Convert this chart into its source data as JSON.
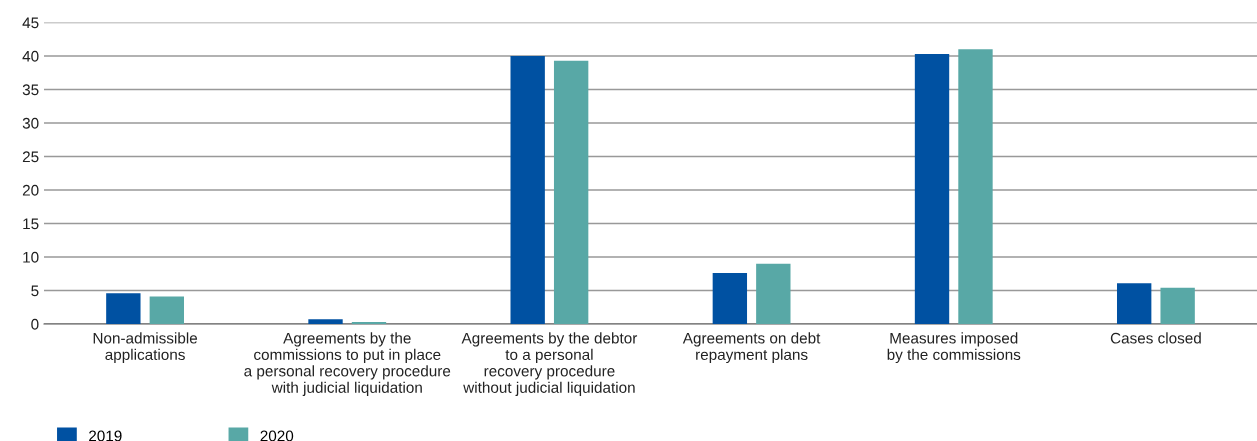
{
  "chart_data": {
    "type": "bar",
    "categories": [
      "Non-admissible\napplications",
      "Agreements by the\ncommissions to put in place\na personal recovery procedure\nwith judicial liquidation",
      "Agreements by the debtor\nto a personal\nrecovery procedure\nwithout judicial liquidation",
      "Agreements on debt\nrepayment plans",
      "Measures imposed\nby the commissions",
      "Cases closed"
    ],
    "series": [
      {
        "name": "2019",
        "color": "#0051a2",
        "values": [
          4.6,
          0.7,
          40.0,
          7.6,
          40.3,
          6.1
        ]
      },
      {
        "name": "2020",
        "color": "#58a8a6",
        "values": [
          4.1,
          0.3,
          39.3,
          9.0,
          41.0,
          5.4
        ]
      }
    ],
    "ylim": [
      0,
      45
    ],
    "yticks": [
      0,
      5,
      10,
      15,
      20,
      25,
      30,
      35,
      40,
      45
    ],
    "grid": "y",
    "legend": "bottom left"
  }
}
